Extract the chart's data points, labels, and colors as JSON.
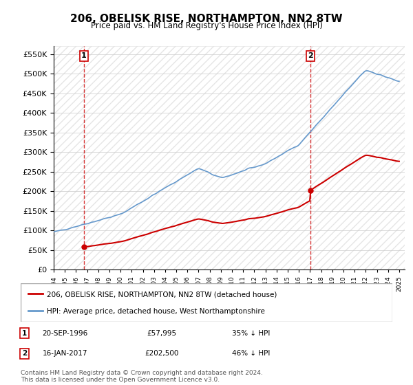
{
  "title": "206, OBELISK RISE, NORTHAMPTON, NN2 8TW",
  "subtitle": "Price paid vs. HM Land Registry's House Price Index (HPI)",
  "legend_line1": "206, OBELISK RISE, NORTHAMPTON, NN2 8TW (detached house)",
  "legend_line2": "HPI: Average price, detached house, West Northamptonshire",
  "footnote": "Contains HM Land Registry data © Crown copyright and database right 2024.\nThis data is licensed under the Open Government Licence v3.0.",
  "sale1_label": "1",
  "sale1_date_str": "20-SEP-1996",
  "sale1_price_str": "£57,995",
  "sale1_hpi_str": "35% ↓ HPI",
  "sale1_year": 1996.72,
  "sale1_price": 57995,
  "sale2_label": "2",
  "sale2_date_str": "16-JAN-2017",
  "sale2_price_str": "£202,500",
  "sale2_hpi_str": "46% ↓ HPI",
  "sale2_year": 2017.04,
  "sale2_price": 202500,
  "price_line_color": "#cc0000",
  "hpi_line_color": "#6699cc",
  "vline_color": "#cc0000",
  "marker_color": "#cc0000",
  "background_color": "#ffffff",
  "plot_bg_color": "#ffffff",
  "grid_color": "#cccccc",
  "hatch_color": "#dddddd",
  "ylim_min": 0,
  "ylim_max": 570000,
  "xlabel": "",
  "ylabel": ""
}
